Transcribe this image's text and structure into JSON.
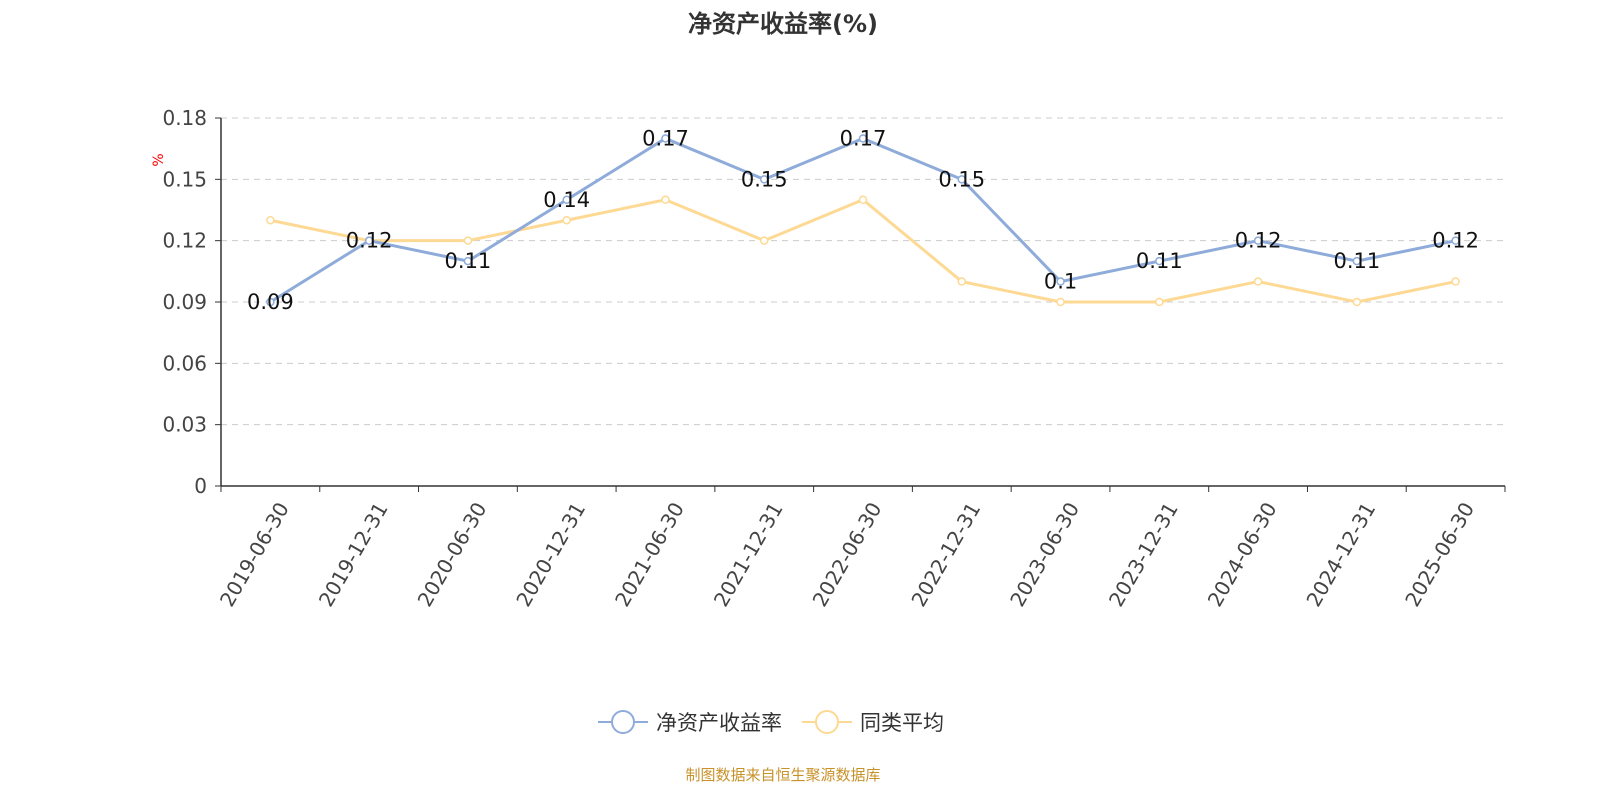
{
  "chart_data": {
    "type": "line",
    "title": "净资产收益率(%)",
    "ylabel": "%",
    "xlabel": "",
    "ylim": [
      0,
      0.18
    ],
    "yticks": [
      "0",
      "0.03",
      "0.06",
      "0.09",
      "0.12",
      "0.15",
      "0.18"
    ],
    "grid": true,
    "legend_position": "bottom",
    "categories": [
      "2019-06-30",
      "2019-12-31",
      "2020-06-30",
      "2020-12-31",
      "2021-06-30",
      "2021-12-31",
      "2022-06-30",
      "2022-12-31",
      "2023-06-30",
      "2023-12-31",
      "2024-06-30",
      "2024-12-31",
      "2025-06-30"
    ],
    "series": [
      {
        "name": "净资产收益率",
        "color": "#8eabd9",
        "show_labels": true,
        "values": [
          0.09,
          0.12,
          0.11,
          0.14,
          0.17,
          0.15,
          0.17,
          0.15,
          0.1,
          0.11,
          0.12,
          0.11,
          0.12
        ]
      },
      {
        "name": "同类平均",
        "color": "#fdd994",
        "show_labels": false,
        "values": [
          0.13,
          0.12,
          0.12,
          0.13,
          0.14,
          0.12,
          0.14,
          0.1,
          0.09,
          0.09,
          0.1,
          0.09,
          0.1
        ]
      }
    ]
  },
  "footer": {
    "source": "制图数据来自恒生聚源数据库",
    "color": "#c8922a"
  },
  "ylabel_color": "#ff0000"
}
